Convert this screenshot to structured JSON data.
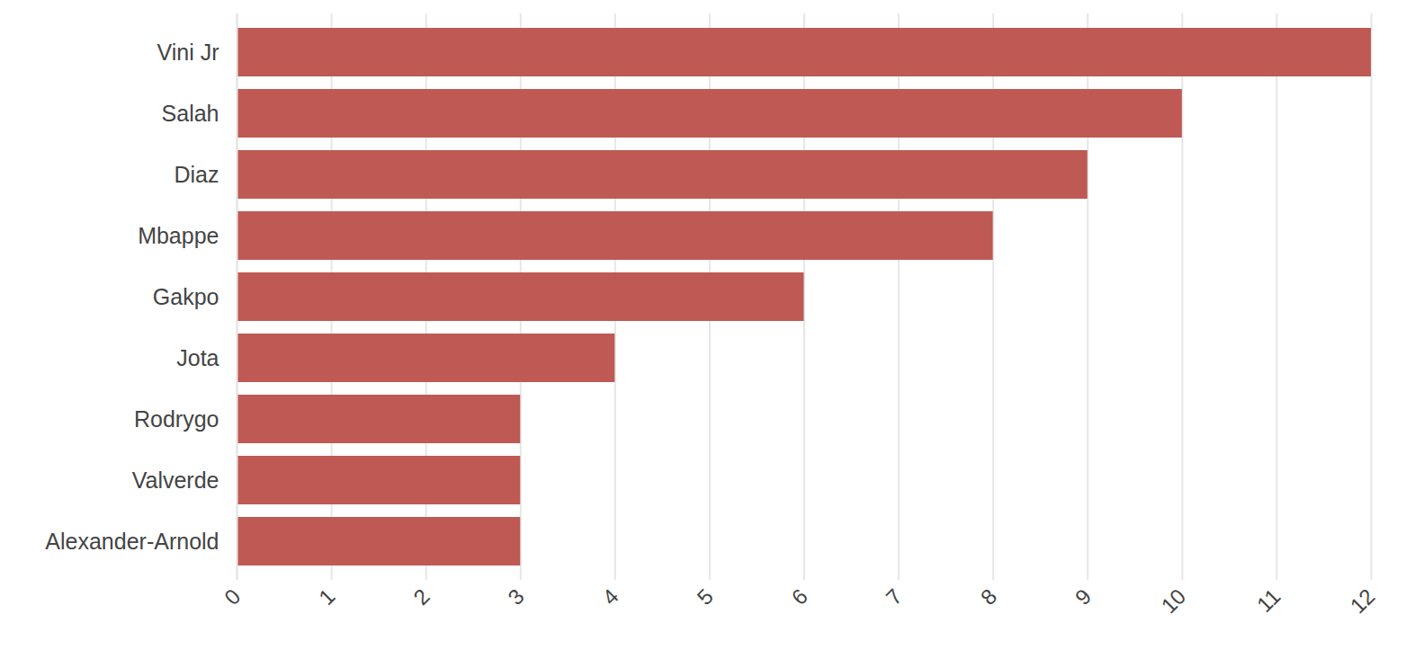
{
  "chart_data": {
    "type": "bar",
    "orientation": "horizontal",
    "categories": [
      "Vini Jr",
      "Salah",
      "Diaz",
      "Mbappe",
      "Gakpo",
      "Jota",
      "Rodrygo",
      "Valverde",
      "Alexander-Arnold"
    ],
    "values": [
      12,
      10,
      9,
      8,
      6,
      4,
      3,
      3,
      3
    ],
    "color": "#bd5750",
    "xlim": [
      0,
      12
    ],
    "xticks": [
      0,
      1,
      2,
      3,
      4,
      5,
      6,
      7,
      8,
      9,
      10,
      11,
      12
    ],
    "grid": true
  }
}
